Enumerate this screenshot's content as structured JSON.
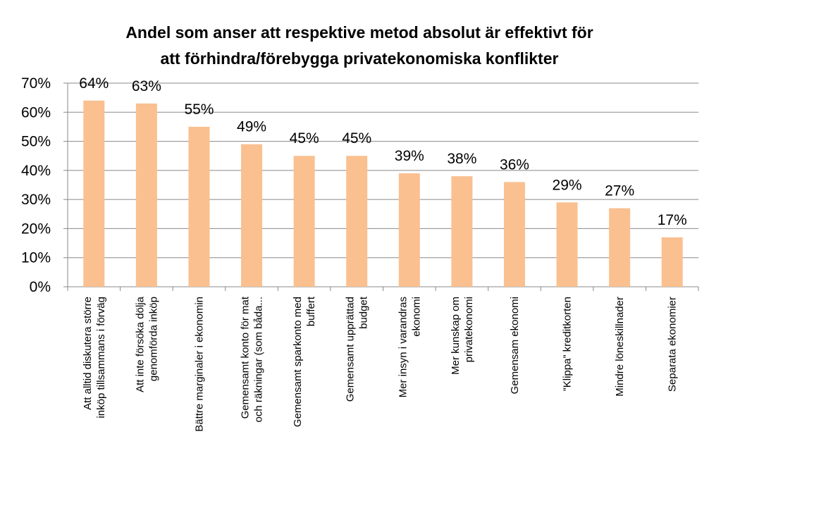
{
  "chart_data": {
    "type": "bar",
    "title_lines": [
      "Andel som anser att respektive metod absolut är effektivt för",
      "att förhindra/förebygga  privatekonomiska konflikter"
    ],
    "categories": [
      [
        "Att alltid diskutera större",
        "inköp tillsammans i förväg"
      ],
      [
        "Att inte försöka dölja",
        "genomförda inköp"
      ],
      [
        "Bättre marginaler i ekonomin"
      ],
      [
        "Gemensamt konto för mat",
        "och räkningar (som båda..."
      ],
      [
        "Gemensamt sparkonto med",
        "buffert"
      ],
      [
        "Gemensamt upprättad",
        "budget"
      ],
      [
        "Mer insyn i varandras",
        "ekonomi"
      ],
      [
        "Mer kunskap om",
        "privatekonomi"
      ],
      [
        "Gemensam ekonomi"
      ],
      [
        "”Klippa” kreditkorten"
      ],
      [
        "Mindre löneskillnader"
      ],
      [
        "Separata ekonomier"
      ]
    ],
    "values": [
      64,
      63,
      55,
      49,
      45,
      45,
      39,
      38,
      36,
      29,
      27,
      17
    ],
    "data_labels": [
      "64%",
      "63%",
      "55%",
      "49%",
      "45%",
      "45%",
      "39%",
      "38%",
      "36%",
      "29%",
      "27%",
      "17%"
    ],
    "ylim": [
      0,
      70
    ],
    "yticks": [
      0,
      10,
      20,
      30,
      40,
      50,
      60,
      70
    ],
    "ytick_labels": [
      "0%",
      "10%",
      "20%",
      "30%",
      "40%",
      "50%",
      "60%",
      "70%"
    ],
    "grid": true,
    "legend": "none",
    "bar_color": "#FAC090",
    "grid_color": "#898989"
  }
}
